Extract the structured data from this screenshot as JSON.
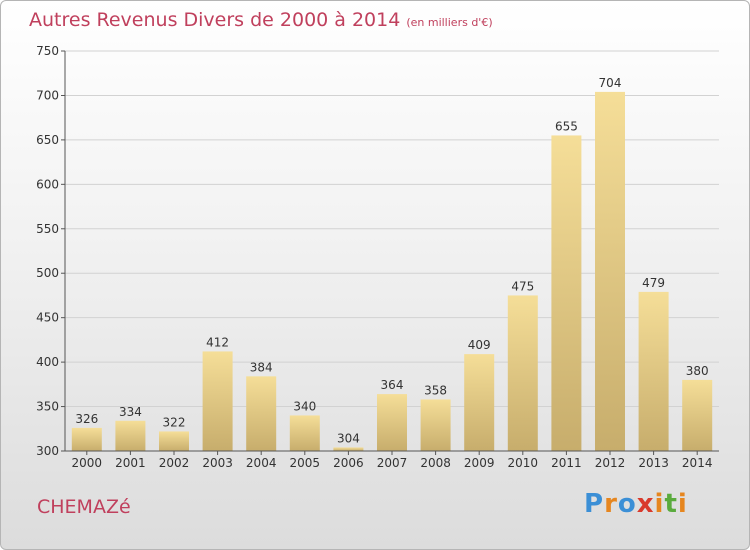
{
  "header": {
    "title": "Autres Revenus Divers de 2000 à 2014",
    "unit_note": "(en milliers d'€)"
  },
  "footer": {
    "place": "CHEMAZé",
    "brand_letters": [
      "P",
      "r",
      "o",
      "x",
      "i",
      "t",
      "i"
    ],
    "brand_colors": [
      "#3b8fd6",
      "#e6861f",
      "#3b8fd6",
      "#d93a2c",
      "#e6861f",
      "#5aab3d",
      "#e6861f"
    ]
  },
  "chart_data": {
    "type": "bar",
    "title": "Autres Revenus Divers de 2000 à 2014",
    "xlabel": "",
    "ylabel": "",
    "categories": [
      "2000",
      "2001",
      "2002",
      "2003",
      "2004",
      "2005",
      "2006",
      "2007",
      "2008",
      "2009",
      "2010",
      "2011",
      "2012",
      "2013",
      "2014"
    ],
    "values": [
      326,
      334,
      322,
      412,
      384,
      340,
      304,
      364,
      358,
      409,
      475,
      655,
      704,
      479,
      380
    ],
    "ylim": [
      300,
      750
    ],
    "yticks": [
      300,
      350,
      400,
      450,
      500,
      550,
      600,
      650,
      700,
      750
    ],
    "grid": true,
    "bar_color_light": "#f5de98",
    "bar_color_dark": "#c7ad6c",
    "text_color": "#333333"
  }
}
